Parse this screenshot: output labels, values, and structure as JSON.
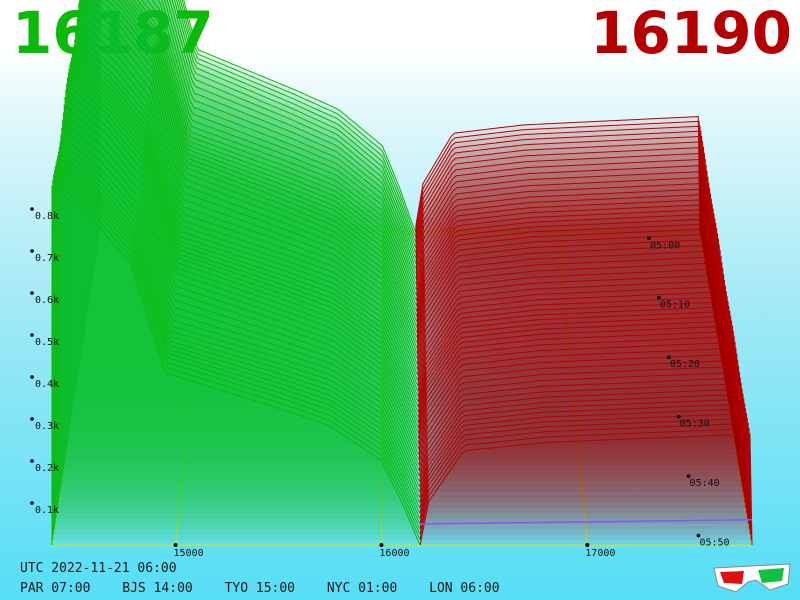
{
  "header": {
    "bid_price": "16187",
    "ask_price": "16190"
  },
  "time_info": {
    "utc_label": "UTC 2022-11-21 06:00",
    "cities": [
      "PAR 07:00",
      "BJS 14:00",
      "TYO 15:00",
      "NYC 01:00",
      "LON 06:00"
    ]
  },
  "colors": {
    "bid": "#0ab90a",
    "ask": "#b40000",
    "grid": "#e8e800",
    "mid_line": "#9050ff"
  },
  "chart_data": {
    "type": "area",
    "x_ticks": [
      "15000",
      "16000",
      "17000"
    ],
    "y_ticks": [
      "0.1k",
      "0.2k",
      "0.3k",
      "0.4k",
      "0.5k",
      "0.6k",
      "0.7k",
      "0.8k"
    ],
    "time_ticks": [
      "05:00",
      "05:10",
      "05:20",
      "05:30",
      "05:40",
      "05:50"
    ],
    "xlim": [
      14400,
      17800
    ],
    "ylim": [
      0,
      0.9
    ],
    "time_range": [
      0,
      60
    ],
    "mid_price": 16190,
    "snapshots": 60,
    "bid_profile": [
      {
        "price": 14400,
        "cum": 0.84
      },
      {
        "price": 14600,
        "cum": 0.76
      },
      {
        "price": 14780,
        "cum": 0.66
      },
      {
        "price": 14950,
        "cum": 0.4
      },
      {
        "price": 15500,
        "cum": 0.32
      },
      {
        "price": 15750,
        "cum": 0.28
      },
      {
        "price": 16000,
        "cum": 0.2
      },
      {
        "price": 16100,
        "cum": 0.1
      },
      {
        "price": 16187,
        "cum": 0.0
      }
    ],
    "ask_profile": [
      {
        "price": 16190,
        "cum": 0.0
      },
      {
        "price": 16230,
        "cum": 0.1
      },
      {
        "price": 16400,
        "cum": 0.22
      },
      {
        "price": 16800,
        "cum": 0.24
      },
      {
        "price": 17300,
        "cum": 0.25
      },
      {
        "price": 17800,
        "cum": 0.26
      }
    ]
  }
}
